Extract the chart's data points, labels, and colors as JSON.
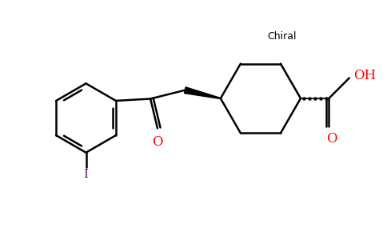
{
  "background_color": "#ffffff",
  "bond_color": "#000000",
  "oxygen_color": "#ff0000",
  "iodine_color": "#800080",
  "chiral_text": "Chiral",
  "chiral_color": "#000000",
  "O_label": "O",
  "OH_label": "OH",
  "I_label": "I",
  "figsize": [
    4.84,
    3.0
  ],
  "dpi": 100
}
